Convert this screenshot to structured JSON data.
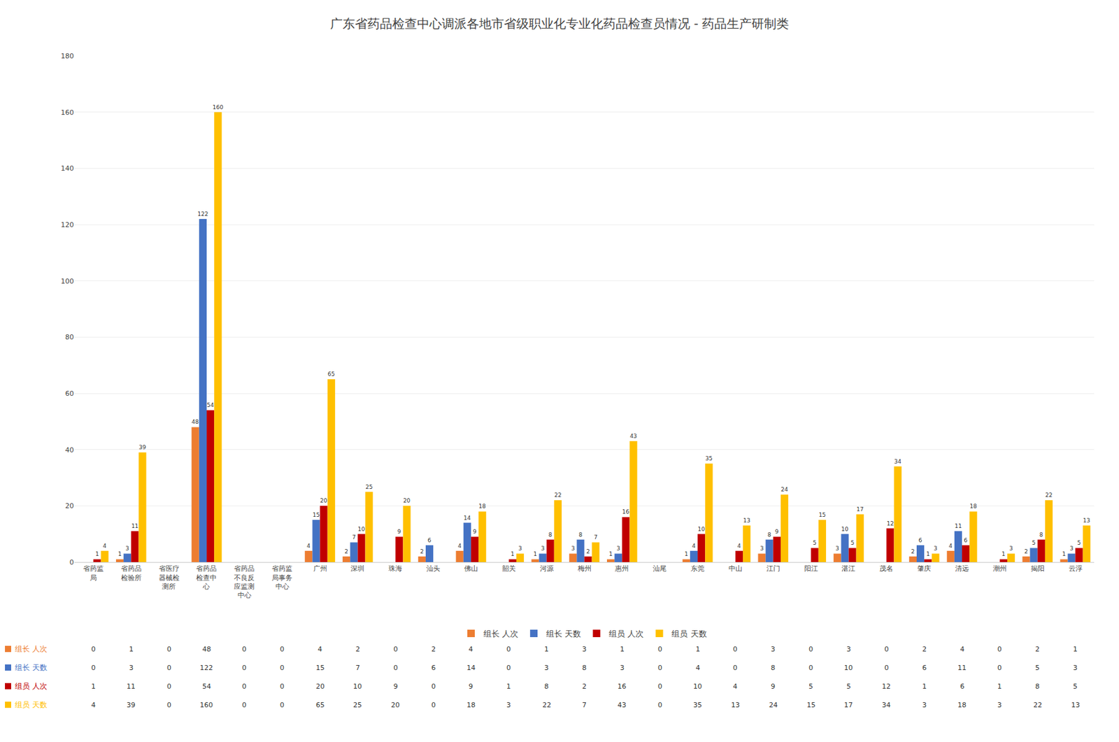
{
  "chart_data": {
    "type": "bar",
    "title": "广东省药品检查中心调派各地市省级职业化专业化药品检查员情况 - 药品生产研制类",
    "categories": [
      "省药监\n局",
      "省药品\n检验所",
      "省医疗\n器械检\n测所",
      "省药品\n检查中\n心",
      "省药品\n不良反\n应监测\n中心",
      "省药监\n局事务\n中心",
      "广州",
      "深圳",
      "珠海",
      "汕头",
      "佛山",
      "韶关",
      "河源",
      "梅州",
      "惠州",
      "汕尾",
      "东莞",
      "中山",
      "江门",
      "阳江",
      "湛江",
      "茂名",
      "肇庆",
      "清远",
      "潮州",
      "揭阳",
      "云浮"
    ],
    "series": [
      {
        "name": "组长 人次",
        "color": "#ED7D31",
        "values": [
          0,
          1,
          0,
          48,
          0,
          0,
          4,
          2,
          0,
          2,
          4,
          0,
          1,
          3,
          1,
          0,
          1,
          0,
          3,
          0,
          3,
          0,
          2,
          4,
          0,
          2,
          1
        ],
        "value_labels": [
          null,
          "1",
          null,
          "48",
          null,
          null,
          "4",
          "2",
          null,
          "2",
          "4",
          null,
          "1",
          "3",
          "1",
          null,
          "1",
          null,
          "3",
          null,
          "3",
          null,
          "2",
          "4",
          null,
          "2",
          "1"
        ]
      },
      {
        "name": "组长 天数",
        "color": "#4472C4",
        "values": [
          0,
          3,
          0,
          122,
          0,
          0,
          15,
          7,
          0,
          6,
          14,
          0,
          3,
          8,
          3,
          0,
          4,
          0,
          8,
          0,
          10,
          0,
          6,
          11,
          0,
          5,
          3
        ],
        "value_labels": [
          null,
          "3",
          null,
          "122",
          null,
          null,
          "15",
          "7",
          null,
          "6",
          "14",
          null,
          "3",
          "8",
          "3",
          null,
          "4",
          null,
          "8",
          null,
          "10",
          null,
          "6",
          "11",
          null,
          "5",
          "3"
        ]
      },
      {
        "name": "组员 人次",
        "color": "#C00000",
        "values": [
          1,
          11,
          0,
          54,
          0,
          0,
          20,
          10,
          9,
          0,
          9,
          1,
          8,
          2,
          16,
          0,
          10,
          4,
          9,
          5,
          5,
          12,
          1,
          6,
          1,
          8,
          5
        ],
        "value_labels": [
          "1",
          "11",
          null,
          "54",
          null,
          null,
          "20",
          "10",
          "9",
          null,
          "9",
          "1",
          "8",
          "2",
          "16",
          null,
          "10",
          "4",
          "9",
          "5",
          "5",
          "12",
          "1",
          "6",
          "1",
          "8",
          "5"
        ]
      },
      {
        "name": "组员 天数",
        "color": "#FFC000",
        "values": [
          4,
          39,
          0,
          160,
          0,
          0,
          65,
          25,
          20,
          0,
          18,
          3,
          22,
          7,
          43,
          0,
          35,
          13,
          24,
          15,
          17,
          34,
          3,
          18,
          3,
          22,
          13
        ],
        "value_labels": [
          "4",
          "39",
          null,
          "160",
          null,
          null,
          "65",
          "25",
          "20",
          null,
          "18",
          "3",
          "22",
          "7",
          "43",
          null,
          "35",
          "13",
          "24",
          "15",
          "17",
          "34",
          "3",
          "18",
          "3",
          "22",
          "13"
        ]
      }
    ],
    "ylim": [
      0,
      180
    ],
    "yticks": [
      0,
      20,
      40,
      60,
      80,
      100,
      120,
      140,
      160,
      180
    ],
    "grid": true,
    "legend": "bottom",
    "data_labels": true
  }
}
